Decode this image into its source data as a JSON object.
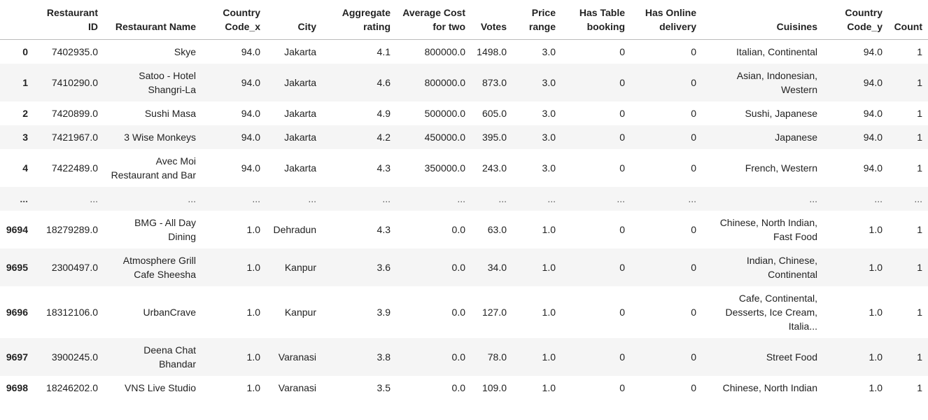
{
  "table": {
    "columns": [
      "Restaurant ID",
      "Restaurant Name",
      "Country Code_x",
      "City",
      "Aggregate rating",
      "Average Cost for two",
      "Votes",
      "Price range",
      "Has Table booking",
      "Has Online delivery",
      "Cuisines",
      "Country Code_y",
      "Count"
    ],
    "rows": [
      [
        "0",
        "7402935.0",
        "Skye",
        "94.0",
        "Jakarta",
        "4.1",
        "800000.0",
        "1498.0",
        "3.0",
        "0",
        "0",
        "Italian, Continental",
        "94.0",
        "1"
      ],
      [
        "1",
        "7410290.0",
        "Satoo - Hotel Shangri-La",
        "94.0",
        "Jakarta",
        "4.6",
        "800000.0",
        "873.0",
        "3.0",
        "0",
        "0",
        "Asian, Indonesian, Western",
        "94.0",
        "1"
      ],
      [
        "2",
        "7420899.0",
        "Sushi Masa",
        "94.0",
        "Jakarta",
        "4.9",
        "500000.0",
        "605.0",
        "3.0",
        "0",
        "0",
        "Sushi, Japanese",
        "94.0",
        "1"
      ],
      [
        "3",
        "7421967.0",
        "3 Wise Monkeys",
        "94.0",
        "Jakarta",
        "4.2",
        "450000.0",
        "395.0",
        "3.0",
        "0",
        "0",
        "Japanese",
        "94.0",
        "1"
      ],
      [
        "4",
        "7422489.0",
        "Avec Moi Restaurant and Bar",
        "94.0",
        "Jakarta",
        "4.3",
        "350000.0",
        "243.0",
        "3.0",
        "0",
        "0",
        "French, Western",
        "94.0",
        "1"
      ],
      [
        "...",
        "...",
        "...",
        "...",
        "...",
        "...",
        "...",
        "...",
        "...",
        "...",
        "...",
        "...",
        "...",
        "..."
      ],
      [
        "9694",
        "18279289.0",
        "BMG - All Day Dining",
        "1.0",
        "Dehradun",
        "4.3",
        "0.0",
        "63.0",
        "1.0",
        "0",
        "0",
        "Chinese, North Indian, Fast Food",
        "1.0",
        "1"
      ],
      [
        "9695",
        "2300497.0",
        "Atmosphere Grill Cafe Sheesha",
        "1.0",
        "Kanpur",
        "3.6",
        "0.0",
        "34.0",
        "1.0",
        "0",
        "0",
        "Indian, Chinese, Continental",
        "1.0",
        "1"
      ],
      [
        "9696",
        "18312106.0",
        "UrbanCrave",
        "1.0",
        "Kanpur",
        "3.9",
        "0.0",
        "127.0",
        "1.0",
        "0",
        "0",
        "Cafe, Continental, Desserts, Ice Cream, Italia...",
        "1.0",
        "1"
      ],
      [
        "9697",
        "3900245.0",
        "Deena Chat Bhandar",
        "1.0",
        "Varanasi",
        "3.8",
        "0.0",
        "78.0",
        "1.0",
        "0",
        "0",
        "Street Food",
        "1.0",
        "1"
      ],
      [
        "9698",
        "18246202.0",
        "VNS Live Studio",
        "1.0",
        "Varanasi",
        "3.5",
        "0.0",
        "109.0",
        "1.0",
        "0",
        "0",
        "Chinese, North Indian",
        "1.0",
        "1"
      ]
    ]
  }
}
